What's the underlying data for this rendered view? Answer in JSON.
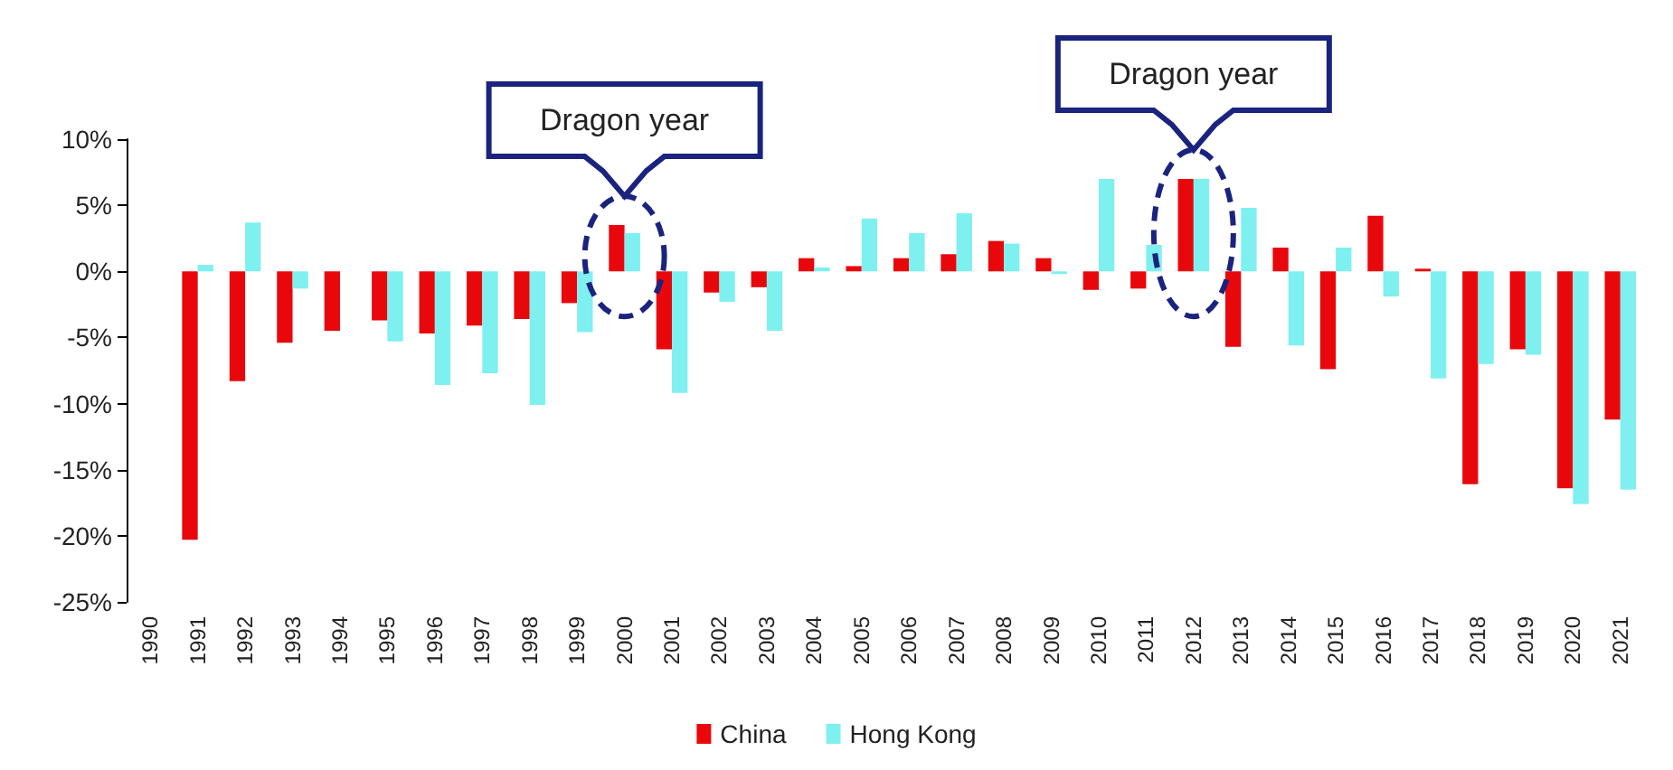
{
  "chart_data": {
    "type": "bar",
    "categories": [
      "1990",
      "1991",
      "1992",
      "1993",
      "1994",
      "1995",
      "1996",
      "1997",
      "1998",
      "1999",
      "2000",
      "2001",
      "2002",
      "2003",
      "2004",
      "2005",
      "2006",
      "2007",
      "2008",
      "2009",
      "2010",
      "2011",
      "2012",
      "2013",
      "2014",
      "2015",
      "2016",
      "2017",
      "2018",
      "2019",
      "2020",
      "2021"
    ],
    "series": [
      {
        "name": "China",
        "color": "#e8080c",
        "values": [
          null,
          -20.3,
          -8.3,
          -5.4,
          -4.5,
          -3.7,
          -4.7,
          -4.1,
          -3.6,
          -2.4,
          3.5,
          -5.9,
          -1.6,
          -1.2,
          1.0,
          0.4,
          1.0,
          1.3,
          2.3,
          1.0,
          -1.4,
          -1.3,
          7.0,
          -5.7,
          1.8,
          -7.4,
          4.2,
          0.2,
          -16.1,
          -5.9,
          -16.4,
          -11.2
        ]
      },
      {
        "name": "Hong Kong",
        "color": "#7ef0f0",
        "values": [
          null,
          0.5,
          3.7,
          -1.3,
          0,
          -5.3,
          -8.6,
          -7.7,
          -10.1,
          -4.6,
          2.9,
          -9.2,
          -2.3,
          -4.5,
          0.3,
          4.0,
          2.9,
          4.4,
          2.1,
          -0.2,
          7.0,
          2.0,
          7.0,
          4.8,
          -5.6,
          1.8,
          -1.9,
          -8.1,
          -7.0,
          -6.3,
          -17.6,
          -16.5
        ]
      }
    ],
    "ylim": [
      -25,
      10
    ],
    "yticks": [
      {
        "value": -25,
        "label": "-25%"
      },
      {
        "value": -20,
        "label": "-20%"
      },
      {
        "value": -15,
        "label": "-15%"
      },
      {
        "value": -10,
        "label": "-10%"
      },
      {
        "value": -5,
        "label": "-5%"
      },
      {
        "value": 0,
        "label": "0%"
      },
      {
        "value": 5,
        "label": "5%"
      },
      {
        "value": 10,
        "label": "10%"
      }
    ],
    "annotations": [
      {
        "text": "Dragon year",
        "x": "2000",
        "y": 3.5
      },
      {
        "text": "Dragon year",
        "x": "2012",
        "y": 7.0
      }
    ],
    "legend": "bottom",
    "grid": false
  }
}
